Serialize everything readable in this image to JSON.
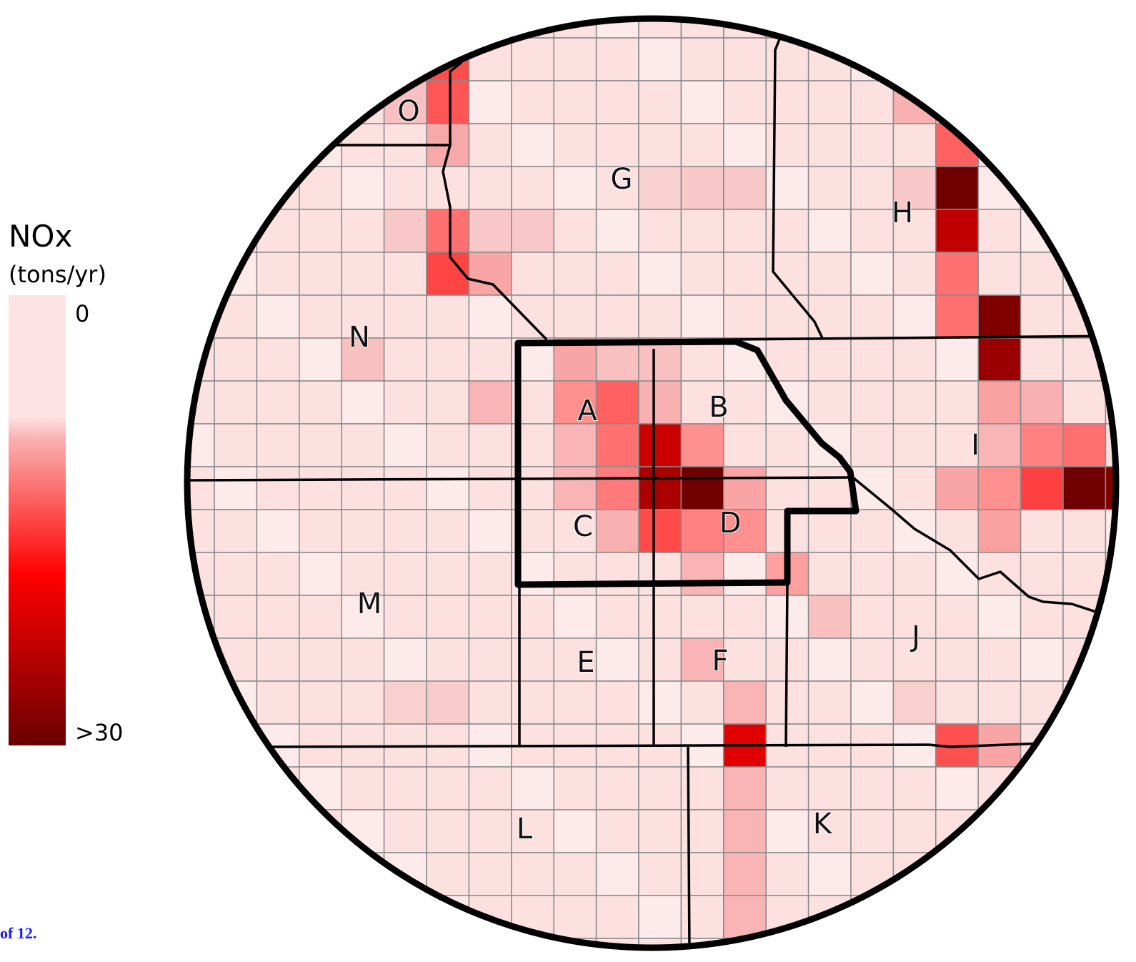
{
  "legend": {
    "title": "NOx",
    "unit": "(tons/yr)",
    "min_label": "0",
    "max_label": ">30"
  },
  "regions": [
    "O",
    "G",
    "H",
    "N",
    "A",
    "B",
    "I",
    "C",
    "D",
    "M",
    "J",
    "E",
    "F",
    "L",
    "K"
  ],
  "footer": "of 12."
}
